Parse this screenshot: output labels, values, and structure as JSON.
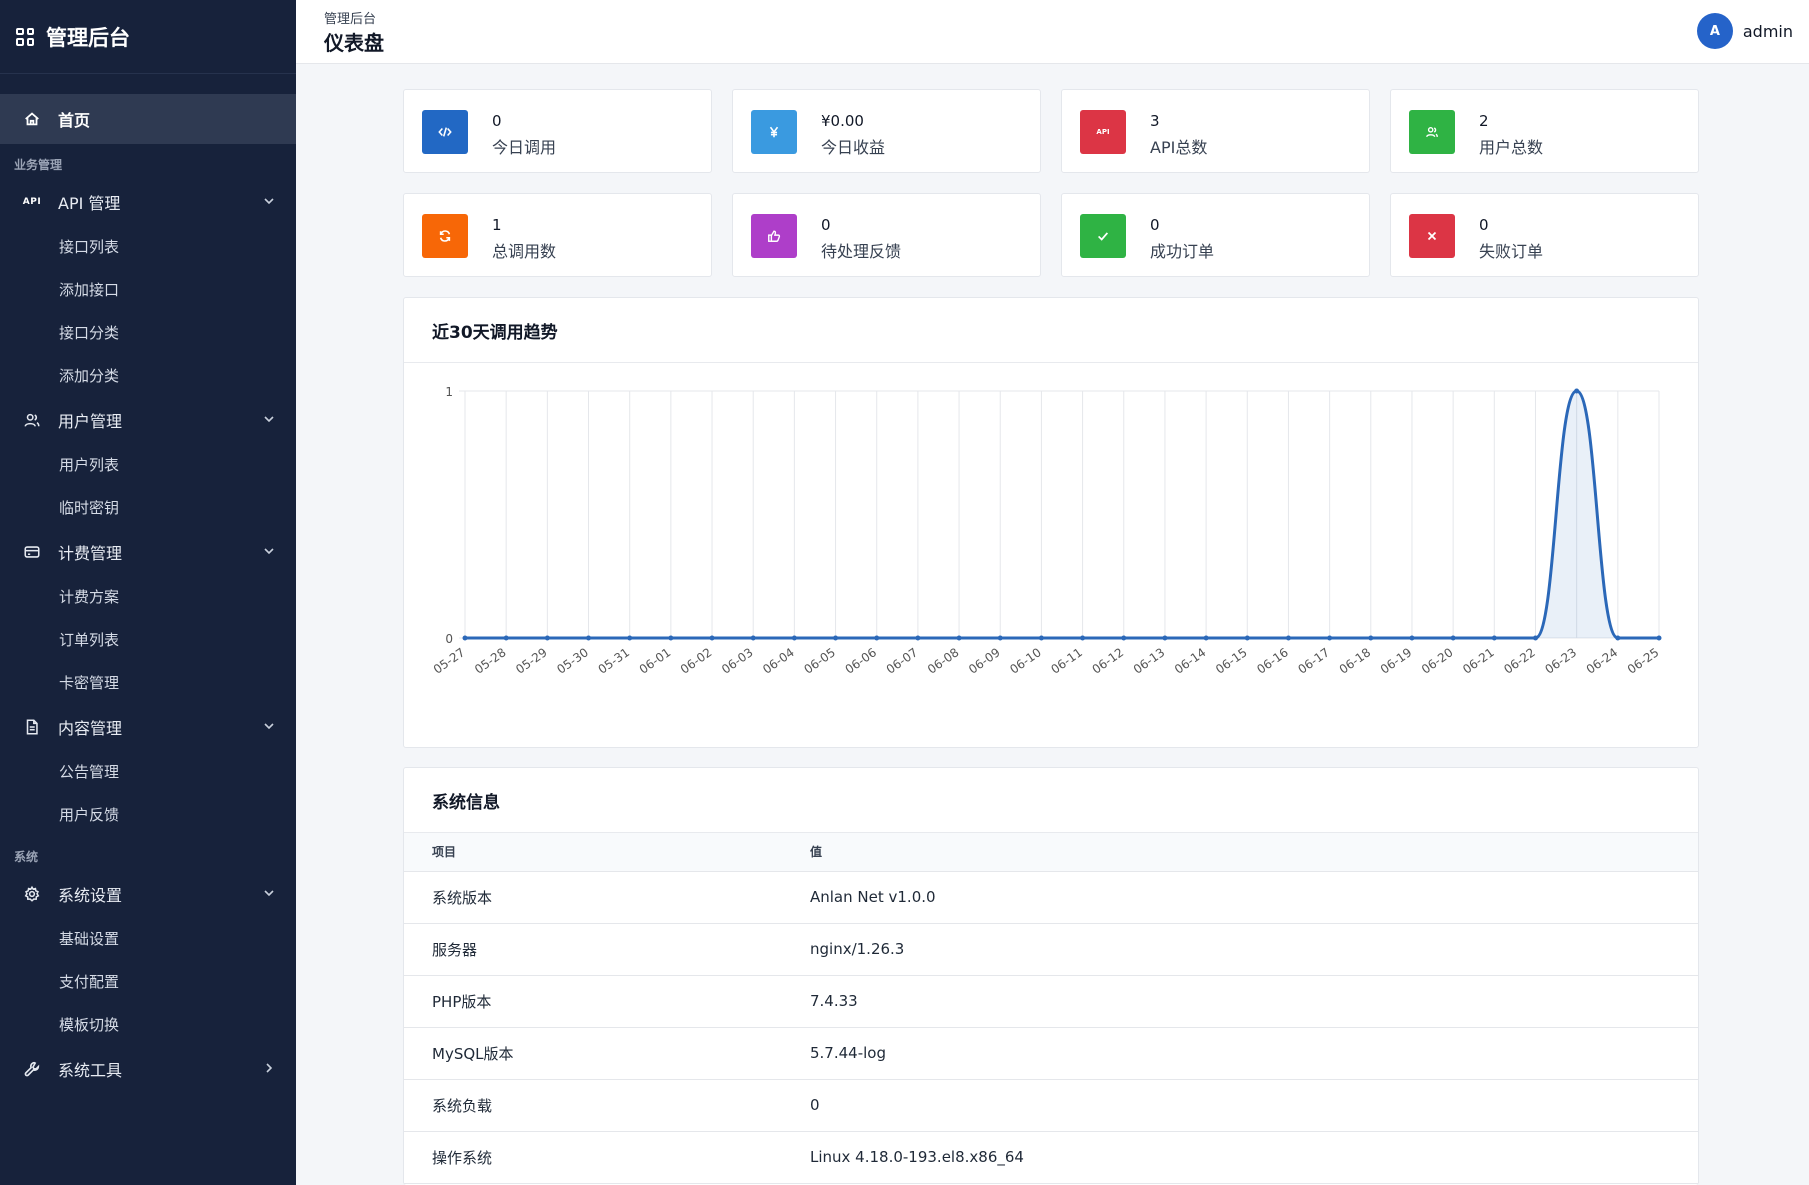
{
  "brand": {
    "title": "管理后台"
  },
  "nav": {
    "home": "首页",
    "section_business": "业务管理",
    "api": {
      "tag": "API",
      "label": "API 管理",
      "items": [
        "接口列表",
        "添加接口",
        "接口分类",
        "添加分类"
      ]
    },
    "users": {
      "label": "用户管理",
      "items": [
        "用户列表",
        "临时密钥"
      ]
    },
    "billing": {
      "label": "计费管理",
      "items": [
        "计费方案",
        "订单列表",
        "卡密管理"
      ]
    },
    "content": {
      "label": "内容管理",
      "items": [
        "公告管理",
        "用户反馈"
      ]
    },
    "section_system": "系统",
    "settings": {
      "label": "系统设置",
      "items": [
        "基础设置",
        "支付配置",
        "模板切换"
      ]
    },
    "tools": {
      "label": "系统工具"
    }
  },
  "topbar": {
    "breadcrumb": "管理后台",
    "title": "仪表盘",
    "avatar_letter": "A",
    "username": "admin"
  },
  "stats": [
    {
      "value": "0",
      "label": "今日调用",
      "color": "#2268c4",
      "icon": "code-icon"
    },
    {
      "value": "¥0.00",
      "label": "今日收益",
      "color": "#3a9ae0",
      "icon": "yen-icon"
    },
    {
      "value": "3",
      "label": "API总数",
      "color": "#dc3545",
      "icon": "api-icon"
    },
    {
      "value": "2",
      "label": "用户总数",
      "color": "#2fb344",
      "icon": "users-icon"
    },
    {
      "value": "1",
      "label": "总调用数",
      "color": "#f76707",
      "icon": "refresh-icon"
    },
    {
      "value": "0",
      "label": "待处理反馈",
      "color": "#ae3ec9",
      "icon": "thumbs-up-icon"
    },
    {
      "value": "0",
      "label": "成功订单",
      "color": "#2fb344",
      "icon": "check-icon"
    },
    {
      "value": "0",
      "label": "失败订单",
      "color": "#dc3545",
      "icon": "x-icon"
    }
  ],
  "chart_panel_title": "近30天调用趋势",
  "chart_data": {
    "type": "line",
    "x": [
      "05-27",
      "05-28",
      "05-29",
      "05-30",
      "05-31",
      "06-01",
      "06-02",
      "06-03",
      "06-04",
      "06-05",
      "06-06",
      "06-07",
      "06-08",
      "06-09",
      "06-10",
      "06-11",
      "06-12",
      "06-13",
      "06-14",
      "06-15",
      "06-16",
      "06-17",
      "06-18",
      "06-19",
      "06-20",
      "06-21",
      "06-22",
      "06-23",
      "06-24",
      "06-25"
    ],
    "values": [
      0,
      0,
      0,
      0,
      0,
      0,
      0,
      0,
      0,
      0,
      0,
      0,
      0,
      0,
      0,
      0,
      0,
      0,
      0,
      0,
      0,
      0,
      0,
      0,
      0,
      0,
      0,
      1,
      0,
      0
    ],
    "ylim": [
      0,
      1
    ],
    "yticks": [
      "0",
      "1"
    ],
    "line_color": "#2b68b8",
    "fill": true,
    "grid": true
  },
  "system_info": {
    "title": "系统信息",
    "headers": [
      "项目",
      "值"
    ],
    "rows": [
      [
        "系统版本",
        "Anlan Net v1.0.0"
      ],
      [
        "服务器",
        "nginx/1.26.3"
      ],
      [
        "PHP版本",
        "7.4.33"
      ],
      [
        "MySQL版本",
        "5.7.44-log"
      ],
      [
        "系统负载",
        "0"
      ],
      [
        "操作系统",
        "Linux 4.18.0-193.el8.x86_64"
      ]
    ]
  }
}
